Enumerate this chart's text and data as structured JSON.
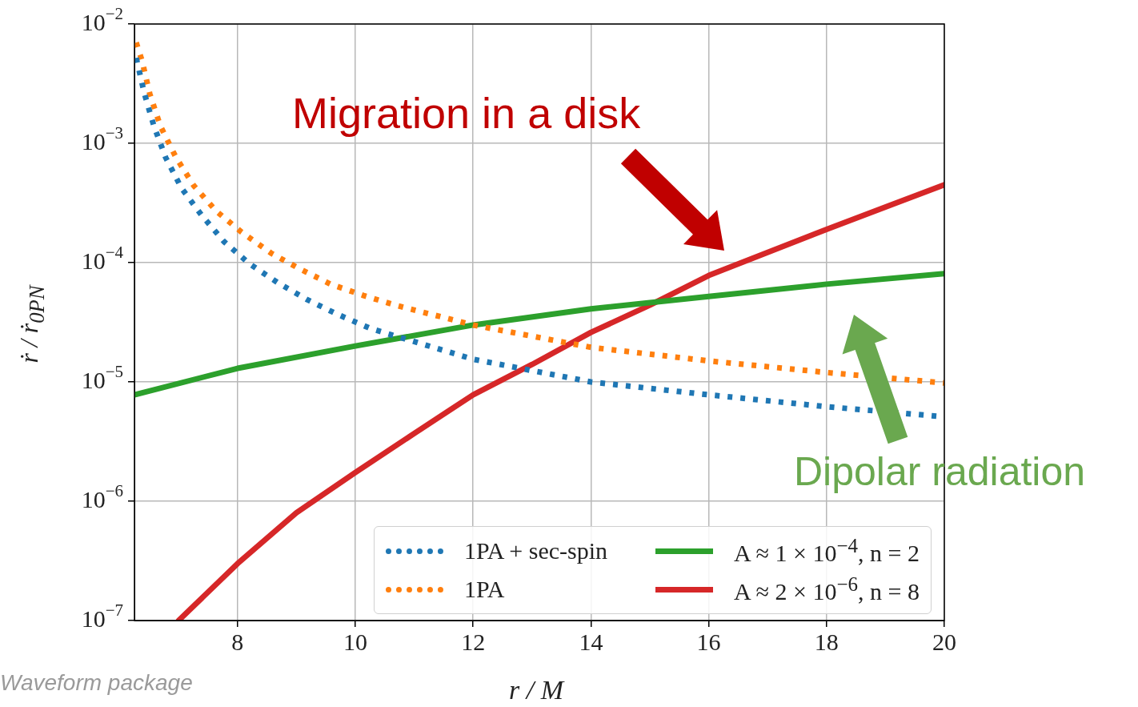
{
  "chart_data": {
    "type": "line",
    "xlabel": "r / M",
    "ylabel": "ṙ / ṙ$_{0PN}$",
    "xlim": [
      6.25,
      20
    ],
    "xticks": [
      8,
      10,
      12,
      14,
      16,
      18,
      20
    ],
    "ylim": [
      1e-07,
      0.01
    ],
    "yticks": [
      {
        "value": 1e-07,
        "label": "10$^{−7}$"
      },
      {
        "value": 1e-06,
        "label": "10$^{−6}$"
      },
      {
        "value": 1e-05,
        "label": "10$^{−5}$"
      },
      {
        "value": 0.0001,
        "label": "10$^{−4}$"
      },
      {
        "value": 0.001,
        "label": "10$^{−3}$"
      },
      {
        "value": 0.01,
        "label": "10$^{−2}$"
      }
    ],
    "log": "y",
    "grid": true,
    "legend": "bottom right",
    "marker": "none",
    "series": [
      {
        "name": "1PA + sec-spin",
        "color": "#1f77b4",
        "line_style": "dotted",
        "x": [
          6.28,
          6.42,
          6.58,
          6.69,
          6.78,
          7.05,
          7.39,
          7.77,
          8.2,
          8.68,
          9.18,
          9.69,
          10.26,
          12,
          14,
          16,
          18,
          20
        ],
        "values": [
          0.0052,
          0.0026,
          0.0014,
          0.001,
          0.00076,
          0.00042,
          0.00025,
          0.00015,
          9.8e-05,
          6.8e-05,
          4.9e-05,
          3.7e-05,
          2.8e-05,
          1.55e-05,
          1e-05,
          7.8e-06,
          6.2e-06,
          5.1e-06
        ]
      },
      {
        "name": "1PA",
        "color": "#ff7f0e",
        "line_style": "dotted",
        "x": [
          6.28,
          6.38,
          6.51,
          6.69,
          6.95,
          7.26,
          7.64,
          8.07,
          8.57,
          9.05,
          9.58,
          10.14,
          10.68,
          12,
          14,
          16,
          18,
          20
        ],
        "values": [
          0.007,
          0.0049,
          0.0026,
          0.0014,
          0.00077,
          0.00044,
          0.00027,
          0.00018,
          0.00012,
          8.9e-05,
          6.6e-05,
          5.3e-05,
          4.4e-05,
          3e-05,
          1.95e-05,
          1.5e-05,
          1.2e-05,
          9.8e-06
        ]
      },
      {
        "name": "A ≈ 1 × 10$^{−4}$, n = 2",
        "color": "#2ca02c",
        "line_style": "solid",
        "x": [
          6.25,
          8,
          10,
          12,
          14,
          16,
          18,
          20
        ],
        "values": [
          7.8e-06,
          1.3e-05,
          2e-05,
          3e-05,
          4.1e-05,
          5.2e-05,
          6.6e-05,
          8.1e-05
        ]
      },
      {
        "name": "A ≈ 2 × 10$^{−6}$, n = 8",
        "color": "#d62728",
        "line_style": "solid",
        "x": [
          7,
          8,
          9,
          10,
          11,
          12,
          13,
          14,
          15,
          16,
          18,
          20
        ],
        "values": [
          1e-07,
          3e-07,
          8e-07,
          1.74e-06,
          3.7e-06,
          7.8e-06,
          1.4e-05,
          2.6e-05,
          4.4e-05,
          7.8e-05,
          0.00019,
          0.00045
        ]
      }
    ],
    "annotations": [
      "Migration in a disk",
      "Dipolar radiation",
      "Waveform package"
    ]
  }
}
